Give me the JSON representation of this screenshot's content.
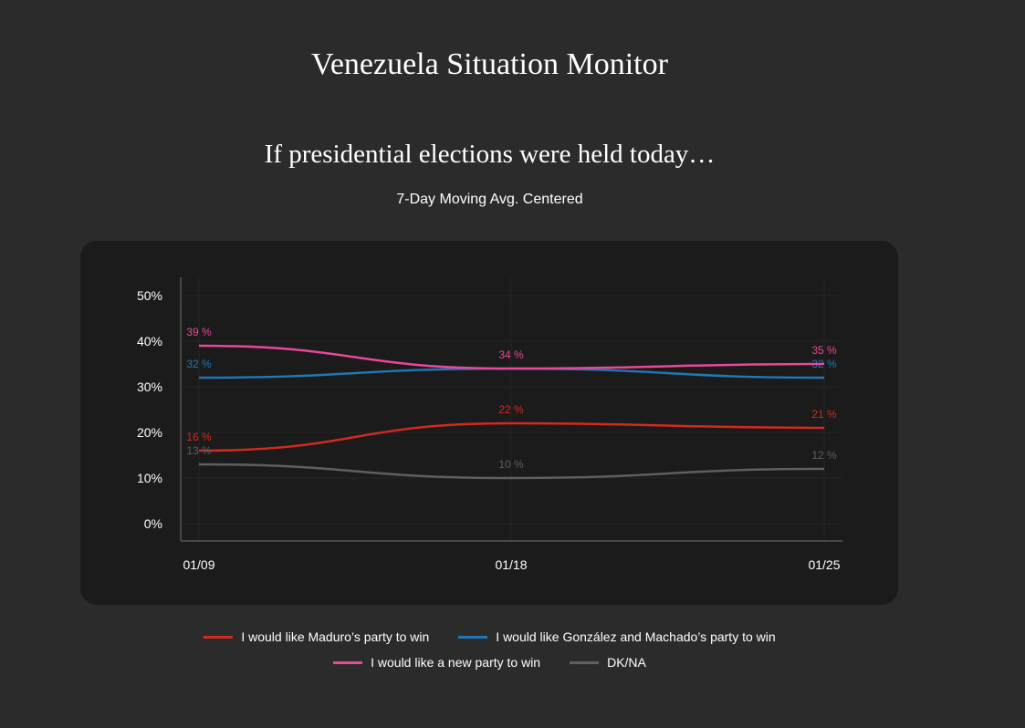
{
  "page_title": "Venezuela Situation Monitor",
  "chart_data": {
    "type": "line",
    "title": "If presidential elections were held today…",
    "subtitle": "7-Day Moving Avg. Centered",
    "x": [
      "01/09",
      "01/18",
      "01/25"
    ],
    "ylim": [
      0,
      50
    ],
    "y_ticks": [
      "0%",
      "10%",
      "20%",
      "30%",
      "40%",
      "50%"
    ],
    "grid": true,
    "legend_position": "bottom",
    "series": [
      {
        "name": "I would like Maduro’s party to win",
        "color": "#d42a1e",
        "values": [
          16,
          22,
          21
        ],
        "labels": [
          "16 %",
          "22 %",
          "21 %"
        ]
      },
      {
        "name": "I would like González and Machado’s party to win",
        "color": "#1f78b4",
        "values": [
          32,
          34,
          32
        ],
        "labels": [
          "32 %",
          "",
          "32 %"
        ]
      },
      {
        "name": "I would like a new party to win",
        "color": "#e8479a",
        "values": [
          39,
          34,
          35
        ],
        "labels": [
          "39 %",
          "34 %",
          "35 %"
        ]
      },
      {
        "name": "DK/NA",
        "color": "#5f5f5f",
        "values": [
          13,
          10,
          12
        ],
        "labels": [
          "13 %",
          "10 %",
          "12 %"
        ]
      }
    ]
  }
}
